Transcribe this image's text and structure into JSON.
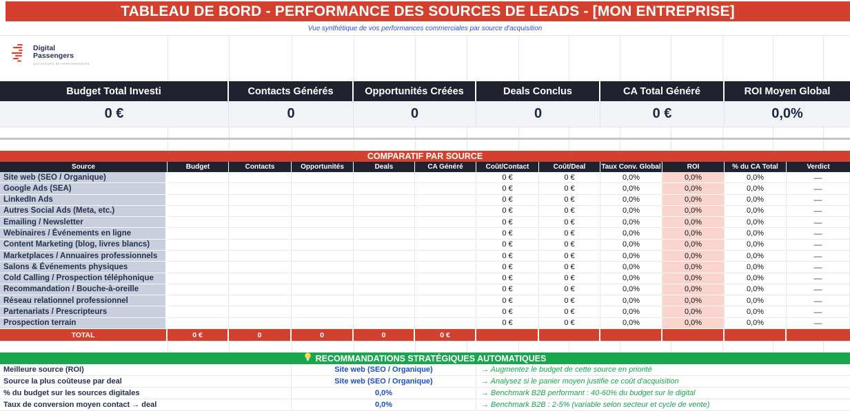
{
  "title": "TABLEAU DE BORD - PERFORMANCE DES SOURCES DE LEADS - [MON ENTREPRISE]",
  "subtitle": "Vue synthétique de vos performances commerciales par source d'acquisition",
  "logo": {
    "line1": "Digital",
    "line2": "Passengers",
    "tagline": "AGITATEURS DE PERFORMANCES"
  },
  "kpis": [
    {
      "label": "Budget Total Investi",
      "value": "0 €"
    },
    {
      "label": "Contacts Générés",
      "value": "0"
    },
    {
      "label": "Opportunités Créées",
      "value": "0"
    },
    {
      "label": "Deals Conclus",
      "value": "0"
    },
    {
      "label": "CA Total Généré",
      "value": "0 €"
    },
    {
      "label": "ROI Moyen Global",
      "value": "0,0%"
    }
  ],
  "comparatif": {
    "banner": "COMPARATIF PAR SOURCE",
    "columns": [
      "Source",
      "Budget",
      "Contacts",
      "Opportunités",
      "Deals",
      "CA Généré",
      "Coût/Contact",
      "Coût/Deal",
      "Taux Conv. Global",
      "ROI",
      "% du CA Total",
      "Verdict"
    ],
    "rows": [
      {
        "source": "Site web (SEO / Organique)",
        "cout_contact": "0 €",
        "cout_deal": "0 €",
        "taux_conv": "0,0%",
        "roi": "0,0%",
        "pct_ca": "0,0%",
        "verdict": "—"
      },
      {
        "source": "Google Ads (SEA)",
        "cout_contact": "0 €",
        "cout_deal": "0 €",
        "taux_conv": "0,0%",
        "roi": "0,0%",
        "pct_ca": "0,0%",
        "verdict": "—"
      },
      {
        "source": "LinkedIn Ads",
        "cout_contact": "0 €",
        "cout_deal": "0 €",
        "taux_conv": "0,0%",
        "roi": "0,0%",
        "pct_ca": "0,0%",
        "verdict": "—"
      },
      {
        "source": "Autres Social Ads (Meta, etc.)",
        "cout_contact": "0 €",
        "cout_deal": "0 €",
        "taux_conv": "0,0%",
        "roi": "0,0%",
        "pct_ca": "0,0%",
        "verdict": "—"
      },
      {
        "source": "Emailing / Newsletter",
        "cout_contact": "0 €",
        "cout_deal": "0 €",
        "taux_conv": "0,0%",
        "roi": "0,0%",
        "pct_ca": "0,0%",
        "verdict": "—"
      },
      {
        "source": "Webinaires / Événements en ligne",
        "cout_contact": "0 €",
        "cout_deal": "0 €",
        "taux_conv": "0,0%",
        "roi": "0,0%",
        "pct_ca": "0,0%",
        "verdict": "—"
      },
      {
        "source": "Content Marketing (blog, livres blancs)",
        "cout_contact": "0 €",
        "cout_deal": "0 €",
        "taux_conv": "0,0%",
        "roi": "0,0%",
        "pct_ca": "0,0%",
        "verdict": "—"
      },
      {
        "source": "Marketplaces / Annuaires professionnels",
        "cout_contact": "0 €",
        "cout_deal": "0 €",
        "taux_conv": "0,0%",
        "roi": "0,0%",
        "pct_ca": "0,0%",
        "verdict": "—"
      },
      {
        "source": "Salons & Événements physiques",
        "cout_contact": "0 €",
        "cout_deal": "0 €",
        "taux_conv": "0,0%",
        "roi": "0,0%",
        "pct_ca": "0,0%",
        "verdict": "—"
      },
      {
        "source": "Cold Calling / Prospection téléphonique",
        "cout_contact": "0 €",
        "cout_deal": "0 €",
        "taux_conv": "0,0%",
        "roi": "0,0%",
        "pct_ca": "0,0%",
        "verdict": "—"
      },
      {
        "source": "Recommandation / Bouche-à-oreille",
        "cout_contact": "0 €",
        "cout_deal": "0 €",
        "taux_conv": "0,0%",
        "roi": "0,0%",
        "pct_ca": "0,0%",
        "verdict": "—"
      },
      {
        "source": "Réseau relationnel professionnel",
        "cout_contact": "0 €",
        "cout_deal": "0 €",
        "taux_conv": "0,0%",
        "roi": "0,0%",
        "pct_ca": "0,0%",
        "verdict": "—"
      },
      {
        "source": "Partenariats / Prescripteurs",
        "cout_contact": "0 €",
        "cout_deal": "0 €",
        "taux_conv": "0,0%",
        "roi": "0,0%",
        "pct_ca": "0,0%",
        "verdict": "—"
      },
      {
        "source": "Prospection terrain",
        "cout_contact": "0 €",
        "cout_deal": "0 €",
        "taux_conv": "0,0%",
        "roi": "0,0%",
        "pct_ca": "0,0%",
        "verdict": "—"
      }
    ],
    "total": {
      "label": "TOTAL",
      "budget": "0 €",
      "contacts": "0",
      "opportunites": "0",
      "deals": "0",
      "ca": "0 €"
    }
  },
  "recommendations": {
    "banner": "RECOMMANDATIONS STRATÉGIQUES AUTOMATIQUES",
    "lightbulb_icon": "lightbulb",
    "rows": [
      {
        "label": "Meilleure source (ROI)",
        "value": "Site web (SEO / Organique)",
        "advice": "→ Augmentez le budget de cette source en priorité"
      },
      {
        "label": "Source la plus coûteuse par deal",
        "value": "Site web (SEO / Organique)",
        "advice": "→ Analysez si le panier moyen justifie ce coût d'acquisition"
      },
      {
        "label": "% du budget sur les sources digitales",
        "value": "0,0%",
        "advice": "→ Benchmark B2B performant : 40-60% du budget sur le digital"
      },
      {
        "label": "Taux de conversion moyen contact → deal",
        "value": "0,0%",
        "advice": "→ Benchmark B2B : 2-5% (variable selon secteur et cycle de vente)"
      }
    ]
  },
  "colors": {
    "red": "#d4402e",
    "navy": "#20222f",
    "green": "#19a64d",
    "blue": "#1a4dc2",
    "pink": "#f9d4cd",
    "source_bg": "#c9cfdc"
  }
}
